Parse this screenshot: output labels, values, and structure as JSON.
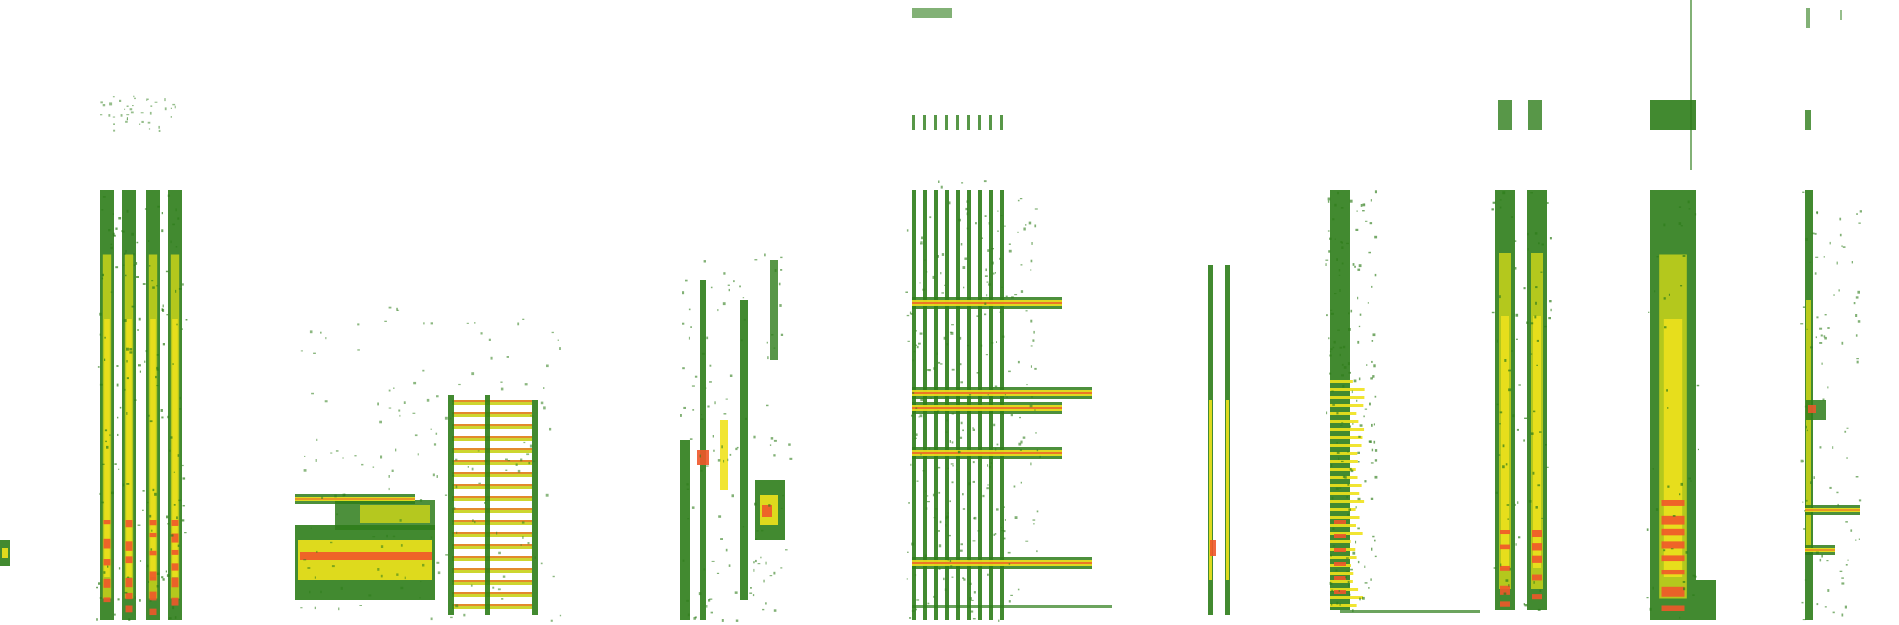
{
  "spectrogram": {
    "background": "#ffffff",
    "palette": {
      "low": "#2e7d1a",
      "mid": "#c8d21a",
      "high": "#f0e21c",
      "peak": "#f0572a"
    },
    "segments": [
      {
        "id": "clip-1"
      },
      {
        "id": "clip-2"
      },
      {
        "id": "clip-3"
      },
      {
        "id": "clip-4"
      },
      {
        "id": "clip-5"
      },
      {
        "id": "clip-6"
      },
      {
        "id": "clip-7"
      },
      {
        "id": "clip-8"
      },
      {
        "id": "clip-9"
      },
      {
        "id": "clip-10"
      },
      {
        "id": "clip-11"
      }
    ]
  }
}
